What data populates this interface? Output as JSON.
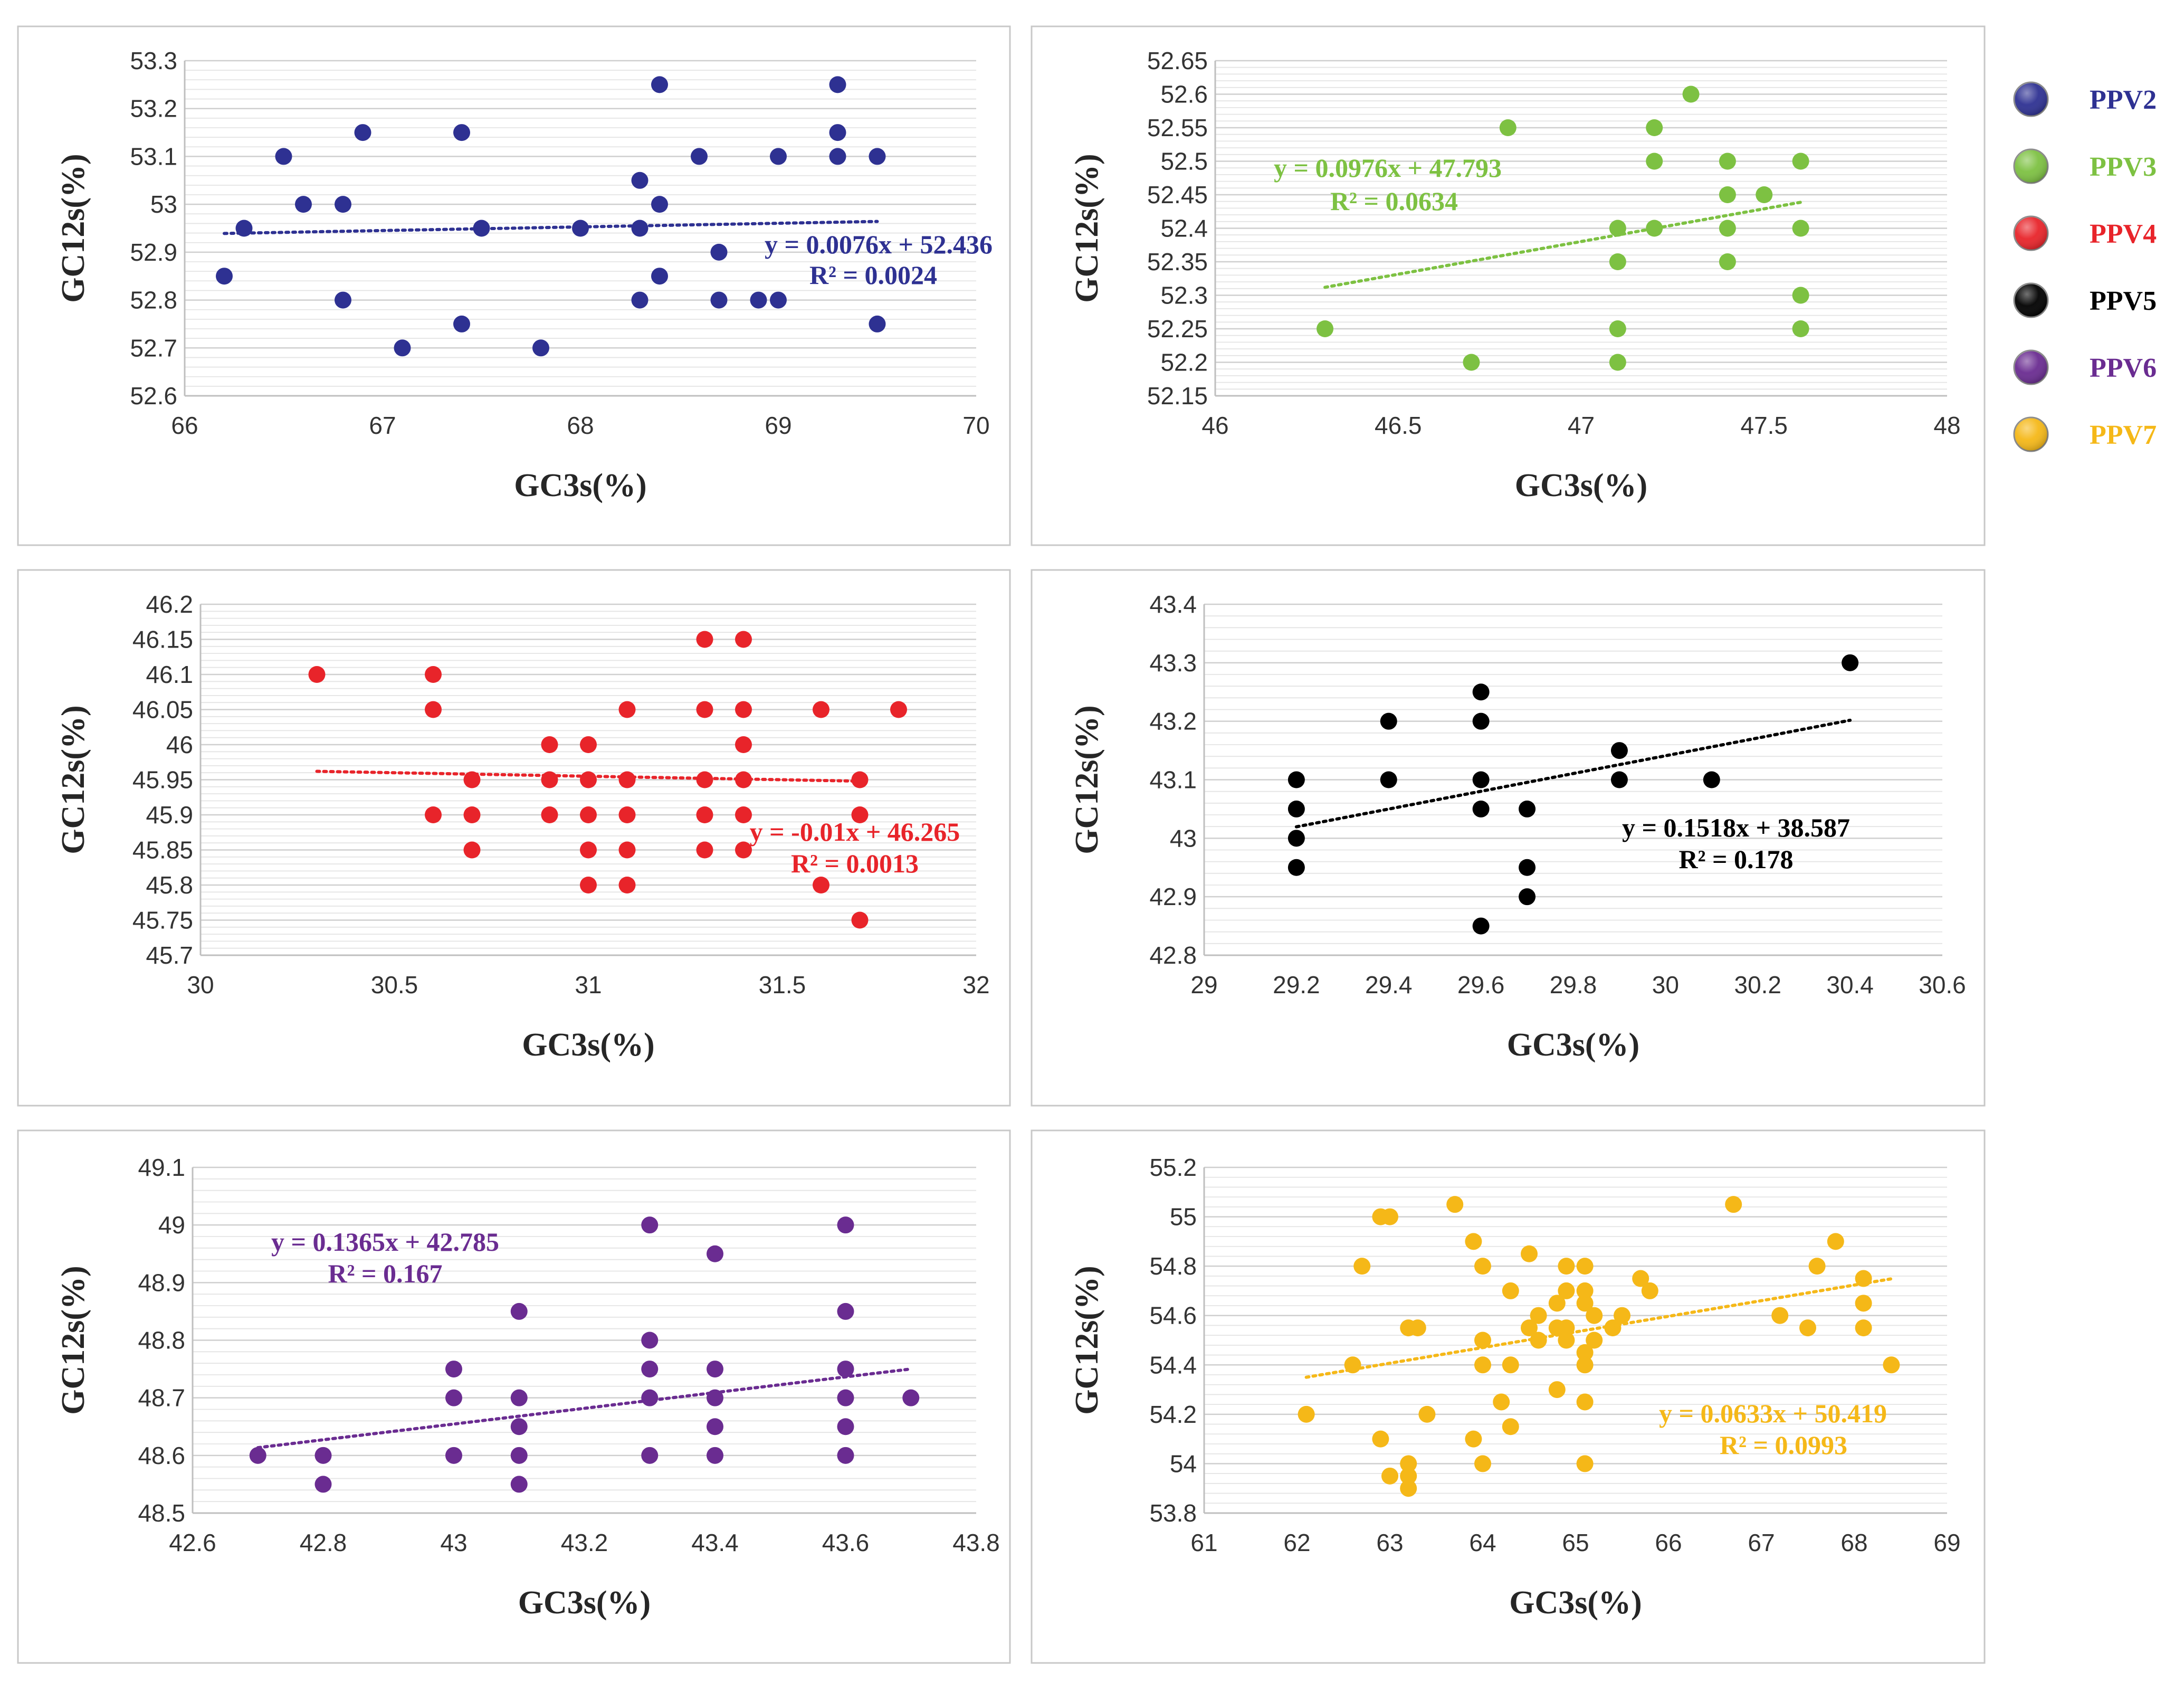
{
  "chart_data": [
    {
      "type": "scatter",
      "series_name": "PPV2",
      "color": "#2E3192",
      "xlabel": "GC3s(%)",
      "ylabel": "GC12s(%)",
      "xlim": [
        66,
        70
      ],
      "ylim": [
        52.6,
        53.3
      ],
      "xticks": [
        "66",
        "67",
        "68",
        "69",
        "70"
      ],
      "yticks": [
        "52.6",
        "52.7",
        "52.8",
        "52.9",
        "53",
        "53.1",
        "53.2",
        "53.3"
      ],
      "trendline": {
        "slope": 0.0076,
        "intercept": 52.436,
        "x_range": [
          66.2,
          69.5
        ]
      },
      "equation": "y = 0.0076x + 52.436",
      "r2": "R² = 0.0024",
      "points": [
        [
          66.2,
          52.85
        ],
        [
          66.3,
          52.95
        ],
        [
          66.5,
          53.1
        ],
        [
          66.6,
          53.0
        ],
        [
          66.8,
          53.0
        ],
        [
          66.8,
          52.8
        ],
        [
          66.9,
          53.15
        ],
        [
          67.1,
          52.7
        ],
        [
          67.4,
          53.15
        ],
        [
          67.4,
          52.75
        ],
        [
          67.5,
          52.95
        ],
        [
          67.8,
          52.7
        ],
        [
          68.0,
          52.95
        ],
        [
          68.3,
          53.05
        ],
        [
          68.3,
          52.95
        ],
        [
          68.3,
          52.8
        ],
        [
          68.4,
          53.25
        ],
        [
          68.4,
          53.0
        ],
        [
          68.4,
          52.85
        ],
        [
          68.6,
          53.1
        ],
        [
          68.7,
          52.9
        ],
        [
          68.7,
          52.8
        ],
        [
          68.9,
          52.8
        ],
        [
          69.0,
          53.1
        ],
        [
          69.0,
          52.8
        ],
        [
          69.3,
          53.25
        ],
        [
          69.3,
          53.15
        ],
        [
          69.3,
          53.1
        ],
        [
          69.5,
          53.1
        ],
        [
          69.5,
          52.75
        ]
      ]
    },
    {
      "type": "scatter",
      "series_name": "PPV3",
      "color": "#7DC142",
      "xlabel": "GC3s(%)",
      "ylabel": "GC12s(%)",
      "xlim": [
        46,
        48
      ],
      "ylim": [
        52.15,
        52.65
      ],
      "xticks": [
        "46",
        "46.5",
        "47",
        "47.5",
        "48"
      ],
      "yticks": [
        "52.15",
        "52.2",
        "52.25",
        "52.3",
        "52.35",
        "52.4",
        "52.45",
        "52.5",
        "52.55",
        "52.6",
        "52.65"
      ],
      "trendline": {
        "slope": 0.0976,
        "intercept": 47.793,
        "x_range": [
          46.3,
          47.6
        ]
      },
      "equation": "y = 0.0976x + 47.793",
      "r2": "R² = 0.0634",
      "points": [
        [
          46.3,
          52.25
        ],
        [
          46.7,
          52.2
        ],
        [
          46.8,
          52.55
        ],
        [
          47.1,
          52.4
        ],
        [
          47.1,
          52.35
        ],
        [
          47.1,
          52.25
        ],
        [
          47.1,
          52.2
        ],
        [
          47.2,
          52.55
        ],
        [
          47.2,
          52.5
        ],
        [
          47.2,
          52.4
        ],
        [
          47.3,
          52.6
        ],
        [
          47.4,
          52.5
        ],
        [
          47.4,
          52.45
        ],
        [
          47.4,
          52.4
        ],
        [
          47.4,
          52.35
        ],
        [
          47.5,
          52.45
        ],
        [
          47.6,
          52.5
        ],
        [
          47.6,
          52.4
        ],
        [
          47.6,
          52.3
        ],
        [
          47.6,
          52.25
        ]
      ]
    },
    {
      "type": "scatter",
      "series_name": "PPV4",
      "color": "#E8242A",
      "xlabel": "GC3s(%)",
      "ylabel": "GC12s(%)",
      "xlim": [
        30,
        32
      ],
      "ylim": [
        45.7,
        46.2
      ],
      "xticks": [
        "30",
        "30.5",
        "31",
        "31.5",
        "32"
      ],
      "yticks": [
        "45.7",
        "45.75",
        "45.8",
        "45.85",
        "45.9",
        "45.95",
        "46",
        "46.05",
        "46.1",
        "46.15",
        "46.2"
      ],
      "trendline": {
        "slope": -0.01,
        "intercept": 46.265,
        "x_range": [
          30.3,
          31.7
        ]
      },
      "equation": "y = -0.01x + 46.265",
      "r2": "R² = 0.0013",
      "points": [
        [
          30.3,
          46.1
        ],
        [
          30.6,
          46.1
        ],
        [
          30.6,
          46.05
        ],
        [
          30.6,
          45.9
        ],
        [
          30.7,
          45.95
        ],
        [
          30.7,
          45.9
        ],
        [
          30.7,
          45.85
        ],
        [
          30.9,
          46.0
        ],
        [
          30.9,
          45.95
        ],
        [
          30.9,
          45.9
        ],
        [
          31.0,
          46.0
        ],
        [
          31.0,
          45.95
        ],
        [
          31.0,
          45.9
        ],
        [
          31.0,
          45.85
        ],
        [
          31.0,
          45.8
        ],
        [
          31.1,
          46.05
        ],
        [
          31.1,
          45.95
        ],
        [
          31.1,
          45.9
        ],
        [
          31.1,
          45.85
        ],
        [
          31.1,
          45.8
        ],
        [
          31.3,
          46.15
        ],
        [
          31.3,
          46.05
        ],
        [
          31.3,
          45.95
        ],
        [
          31.3,
          45.9
        ],
        [
          31.3,
          45.85
        ],
        [
          31.4,
          46.15
        ],
        [
          31.4,
          46.05
        ],
        [
          31.4,
          46.0
        ],
        [
          31.4,
          45.95
        ],
        [
          31.4,
          45.9
        ],
        [
          31.4,
          45.85
        ],
        [
          31.6,
          46.05
        ],
        [
          31.6,
          45.8
        ],
        [
          31.7,
          45.95
        ],
        [
          31.7,
          45.9
        ],
        [
          31.7,
          45.75
        ],
        [
          31.8,
          46.05
        ]
      ]
    },
    {
      "type": "scatter",
      "series_name": "PPV5",
      "color": "#000000",
      "xlabel": "GC3s(%)",
      "ylabel": "GC12s(%)",
      "xlim": [
        29,
        30.6
      ],
      "ylim": [
        42.8,
        43.4
      ],
      "xticks": [
        "29",
        "29.2",
        "29.4",
        "29.6",
        "29.8",
        "30",
        "30.2",
        "30.4",
        "30.6"
      ],
      "yticks": [
        "42.8",
        "42.9",
        "43",
        "43.1",
        "43.2",
        "43.3",
        "43.4"
      ],
      "trendline": {
        "slope": 0.1518,
        "intercept": 38.587,
        "x_range": [
          29.2,
          30.4
        ]
      },
      "equation": "y = 0.1518x + 38.587",
      "r2": "R² = 0.178",
      "points": [
        [
          29.2,
          43.1
        ],
        [
          29.2,
          43.05
        ],
        [
          29.2,
          43.0
        ],
        [
          29.2,
          42.95
        ],
        [
          29.4,
          43.2
        ],
        [
          29.4,
          43.1
        ],
        [
          29.6,
          43.25
        ],
        [
          29.6,
          43.2
        ],
        [
          29.6,
          43.1
        ],
        [
          29.6,
          43.05
        ],
        [
          29.6,
          42.85
        ],
        [
          29.7,
          43.05
        ],
        [
          29.7,
          42.95
        ],
        [
          29.7,
          42.9
        ],
        [
          29.9,
          43.15
        ],
        [
          29.9,
          43.1
        ],
        [
          30.1,
          43.1
        ],
        [
          30.4,
          43.3
        ]
      ]
    },
    {
      "type": "scatter",
      "series_name": "PPV6",
      "color": "#6A2C91",
      "xlabel": "GC3s(%)",
      "ylabel": "GC12s(%)",
      "xlim": [
        42.6,
        43.8
      ],
      "ylim": [
        48.5,
        49.1
      ],
      "xticks": [
        "42.6",
        "42.8",
        "43",
        "43.2",
        "43.4",
        "43.6",
        "43.8"
      ],
      "yticks": [
        "48.5",
        "48.6",
        "48.7",
        "48.8",
        "48.9",
        "49",
        "49.1"
      ],
      "trendline": {
        "slope": 0.1365,
        "intercept": 42.785,
        "x_range": [
          42.7,
          43.7
        ]
      },
      "equation": "y = 0.1365x + 42.785",
      "r2": "R² = 0.167",
      "points": [
        [
          42.7,
          48.6
        ],
        [
          42.8,
          48.6
        ],
        [
          42.8,
          48.55
        ],
        [
          43.0,
          48.75
        ],
        [
          43.0,
          48.7
        ],
        [
          43.0,
          48.6
        ],
        [
          43.1,
          48.85
        ],
        [
          43.1,
          48.7
        ],
        [
          43.1,
          48.65
        ],
        [
          43.1,
          48.6
        ],
        [
          43.1,
          48.55
        ],
        [
          43.3,
          49.0
        ],
        [
          43.3,
          48.8
        ],
        [
          43.3,
          48.75
        ],
        [
          43.3,
          48.7
        ],
        [
          43.3,
          48.6
        ],
        [
          43.4,
          48.95
        ],
        [
          43.4,
          48.75
        ],
        [
          43.4,
          48.7
        ],
        [
          43.4,
          48.65
        ],
        [
          43.4,
          48.6
        ],
        [
          43.6,
          49.0
        ],
        [
          43.6,
          48.85
        ],
        [
          43.6,
          48.75
        ],
        [
          43.6,
          48.7
        ],
        [
          43.6,
          48.65
        ],
        [
          43.6,
          48.6
        ],
        [
          43.7,
          48.7
        ]
      ]
    },
    {
      "type": "scatter",
      "series_name": "PPV7",
      "color": "#F5B818",
      "xlabel": "GC3s(%)",
      "ylabel": "GC12s(%)",
      "xlim": [
        61,
        69
      ],
      "ylim": [
        53.8,
        55.2
      ],
      "xticks": [
        "61",
        "62",
        "63",
        "64",
        "65",
        "66",
        "67",
        "68",
        "69"
      ],
      "yticks": [
        "53.8",
        "54",
        "54.2",
        "54.4",
        "54.6",
        "54.8",
        "55",
        "55.2"
      ],
      "trendline": {
        "slope": 0.0633,
        "intercept": 50.419,
        "x_range": [
          62.1,
          68.4
        ]
      },
      "equation": "y = 0.0633x + 50.419",
      "r2": "R² = 0.0993",
      "points": [
        [
          62.1,
          54.2
        ],
        [
          62.6,
          54.4
        ],
        [
          62.7,
          54.8
        ],
        [
          62.9,
          55.0
        ],
        [
          62.9,
          54.1
        ],
        [
          63.0,
          55.0
        ],
        [
          63.0,
          53.95
        ],
        [
          63.2,
          54.55
        ],
        [
          63.2,
          54.0
        ],
        [
          63.2,
          53.95
        ],
        [
          63.2,
          53.9
        ],
        [
          63.3,
          54.55
        ],
        [
          63.4,
          54.2
        ],
        [
          63.7,
          55.05
        ],
        [
          63.9,
          54.9
        ],
        [
          63.9,
          54.1
        ],
        [
          64.0,
          54.8
        ],
        [
          64.0,
          54.5
        ],
        [
          64.0,
          54.4
        ],
        [
          64.0,
          54.0
        ],
        [
          64.2,
          54.25
        ],
        [
          64.3,
          54.7
        ],
        [
          64.3,
          54.4
        ],
        [
          64.3,
          54.15
        ],
        [
          64.5,
          54.85
        ],
        [
          64.5,
          54.55
        ],
        [
          64.6,
          54.6
        ],
        [
          64.6,
          54.5
        ],
        [
          64.8,
          54.65
        ],
        [
          64.8,
          54.55
        ],
        [
          64.8,
          54.3
        ],
        [
          64.9,
          54.8
        ],
        [
          64.9,
          54.7
        ],
        [
          64.9,
          54.55
        ],
        [
          64.9,
          54.5
        ],
        [
          65.1,
          54.8
        ],
        [
          65.1,
          54.7
        ],
        [
          65.1,
          54.65
        ],
        [
          65.1,
          54.45
        ],
        [
          65.1,
          54.4
        ],
        [
          65.1,
          54.25
        ],
        [
          65.1,
          54.0
        ],
        [
          65.2,
          54.6
        ],
        [
          65.2,
          54.5
        ],
        [
          65.4,
          54.55
        ],
        [
          65.5,
          54.6
        ],
        [
          65.7,
          54.75
        ],
        [
          65.8,
          54.7
        ],
        [
          66.7,
          55.05
        ],
        [
          67.2,
          54.6
        ],
        [
          67.5,
          54.55
        ],
        [
          67.6,
          54.8
        ],
        [
          67.8,
          54.9
        ],
        [
          68.1,
          54.75
        ],
        [
          68.1,
          54.65
        ],
        [
          68.1,
          54.55
        ],
        [
          68.4,
          54.4
        ]
      ]
    }
  ],
  "legend": [
    {
      "label": "PPV2",
      "color": "#2E3192"
    },
    {
      "label": "PPV3",
      "color": "#7DC142"
    },
    {
      "label": "PPV4",
      "color": "#E8242A"
    },
    {
      "label": "PPV5",
      "color": "#000000"
    },
    {
      "label": "PPV6",
      "color": "#6A2C91"
    },
    {
      "label": "PPV7",
      "color": "#F5B818"
    }
  ]
}
